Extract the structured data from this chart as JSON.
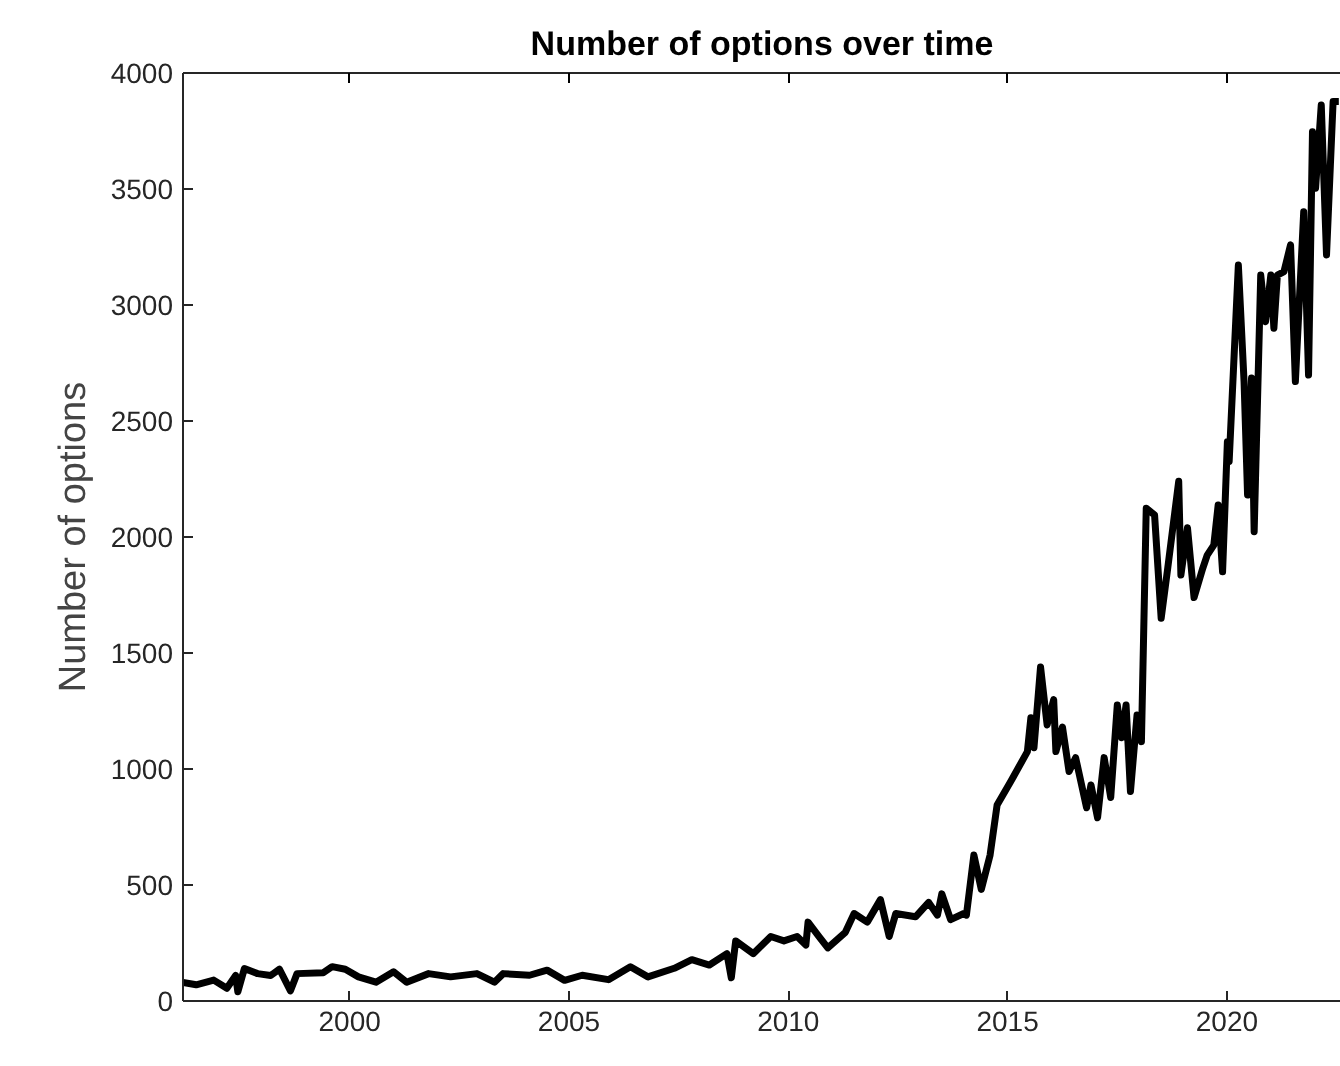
{
  "chart_data": {
    "type": "line",
    "title": "Number of options over time",
    "ylabel": "Number of options",
    "x": [
      1996.2,
      1996.5,
      1996.9,
      1997.2,
      1997.4,
      1997.45,
      1997.6,
      1997.9,
      1998.2,
      1998.4,
      1998.65,
      1998.8,
      1999.4,
      1999.6,
      1999.9,
      2000.2,
      2000.6,
      2001.0,
      2001.3,
      2001.8,
      2002.3,
      2002.9,
      2003.3,
      2003.5,
      2004.1,
      2004.5,
      2004.9,
      2005.3,
      2005.9,
      2006.4,
      2006.8,
      2007.4,
      2007.8,
      2008.2,
      2008.6,
      2008.7,
      2008.8,
      2009.2,
      2009.6,
      2009.9,
      2010.2,
      2010.4,
      2010.45,
      2010.7,
      2010.9,
      2011.3,
      2011.5,
      2011.8,
      2012.1,
      2012.3,
      2012.45,
      2012.9,
      2013.2,
      2013.4,
      2013.5,
      2013.7,
      2014.0,
      2014.06,
      2014.23,
      2014.4,
      2014.6,
      2014.76,
      2015.07,
      2015.45,
      2015.53,
      2015.6,
      2015.75,
      2015.9,
      2016.05,
      2016.1,
      2016.25,
      2016.4,
      2016.55,
      2016.8,
      2016.9,
      2017.05,
      2017.2,
      2017.35,
      2017.5,
      2017.6,
      2017.7,
      2017.8,
      2017.95,
      2018.05,
      2018.16,
      2018.35,
      2018.5,
      2018.65,
      2018.9,
      2018.95,
      2019.1,
      2019.25,
      2019.45,
      2019.55,
      2019.7,
      2019.8,
      2019.9,
      2020.01,
      2020.05,
      2020.26,
      2020.39,
      2020.47,
      2020.56,
      2020.62,
      2020.77,
      2020.88,
      2021.0,
      2021.07,
      2021.15,
      2021.3,
      2021.45,
      2021.56,
      2021.75,
      2021.86,
      2021.95,
      2022.02,
      2022.15,
      2022.27,
      2022.42,
      2022.55
    ],
    "values": [
      80,
      70,
      90,
      55,
      110,
      40,
      140,
      118,
      110,
      137,
      44,
      118,
      122,
      148,
      137,
      104,
      81,
      126,
      81,
      118,
      104,
      118,
      81,
      118,
      111,
      133,
      89,
      111,
      92,
      148,
      104,
      141,
      178,
      155,
      204,
      100,
      259,
      204,
      278,
      259,
      278,
      241,
      340,
      278,
      229,
      296,
      377,
      340,
      437,
      278,
      377,
      363,
      425,
      370,
      462,
      351,
      377,
      370,
      629,
      481,
      629,
      845,
      946,
      1075,
      1221,
      1092,
      1440,
      1190,
      1299,
      1075,
      1181,
      989,
      1049,
      833,
      931,
      790,
      1049,
      877,
      1276,
      1135,
      1276,
      903,
      1233,
      1118,
      2124,
      2095,
      1650,
      1866,
      2240,
      1836,
      2040,
      1739,
      1866,
      1922,
      1965,
      2138,
      1850,
      2411,
      2325,
      3172,
      2670,
      2181,
      2685,
      2023,
      3129,
      2928,
      3129,
      2900,
      3129,
      3144,
      3259,
      2670,
      3402,
      2698,
      3747,
      3503,
      3862,
      3216,
      3877,
      3877
    ],
    "color": "#000000",
    "xlim": [
      1996.2,
      2022.6
    ],
    "xticks": [
      2000,
      2005,
      2010,
      2015,
      2020
    ],
    "ylim": [
      0,
      4000
    ],
    "yticks": [
      0,
      500,
      1000,
      1500,
      2000,
      2500,
      3000,
      3500,
      4000
    ],
    "grid": false
  }
}
